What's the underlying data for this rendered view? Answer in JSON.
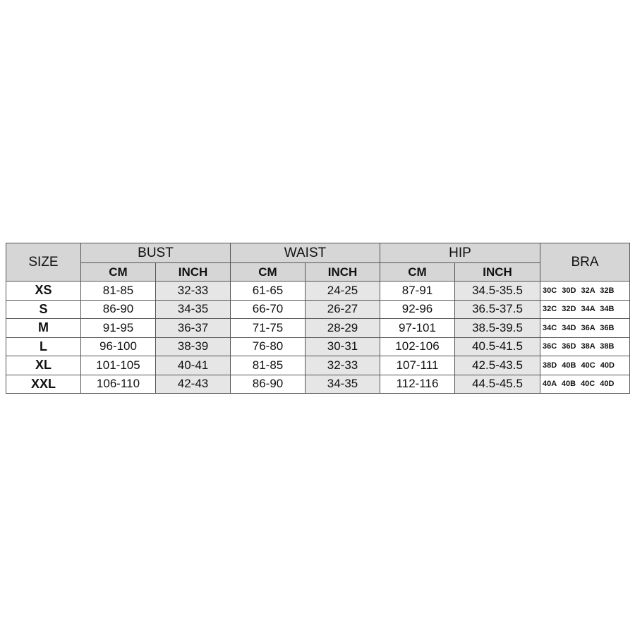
{
  "headers": {
    "size": "SIZE",
    "bust": "BUST",
    "waist": "WAIST",
    "hip": "HIP",
    "bra": "BRA",
    "cm": "CM",
    "inch": "INCH"
  },
  "rows": [
    {
      "size": "XS",
      "bust_cm": "81-85",
      "bust_inch": "32-33",
      "waist_cm": "61-65",
      "waist_inch": "24-25",
      "hip_cm": "87-91",
      "hip_inch": "34.5-35.5",
      "bra": "30C 30D 32A 32B"
    },
    {
      "size": "S",
      "bust_cm": "86-90",
      "bust_inch": "34-35",
      "waist_cm": "66-70",
      "waist_inch": "26-27",
      "hip_cm": "92-96",
      "hip_inch": "36.5-37.5",
      "bra": "32C 32D 34A 34B"
    },
    {
      "size": "M",
      "bust_cm": "91-95",
      "bust_inch": "36-37",
      "waist_cm": "71-75",
      "waist_inch": "28-29",
      "hip_cm": "97-101",
      "hip_inch": "38.5-39.5",
      "bra": "34C 34D 36A 36B"
    },
    {
      "size": "L",
      "bust_cm": "96-100",
      "bust_inch": "38-39",
      "waist_cm": "76-80",
      "waist_inch": "30-31",
      "hip_cm": "102-106",
      "hip_inch": "40.5-41.5",
      "bra": "36C 36D 38A 38B"
    },
    {
      "size": "XL",
      "bust_cm": "101-105",
      "bust_inch": "40-41",
      "waist_cm": "81-85",
      "waist_inch": "32-33",
      "hip_cm": "107-111",
      "hip_inch": "42.5-43.5",
      "bra": "38D 40B 40C 40D"
    },
    {
      "size": "XXL",
      "bust_cm": "106-110",
      "bust_inch": "42-43",
      "waist_cm": "86-90",
      "waist_inch": "34-35",
      "hip_cm": "112-116",
      "hip_inch": "44.5-45.5",
      "bra": "40A 40B 40C 40D"
    }
  ]
}
